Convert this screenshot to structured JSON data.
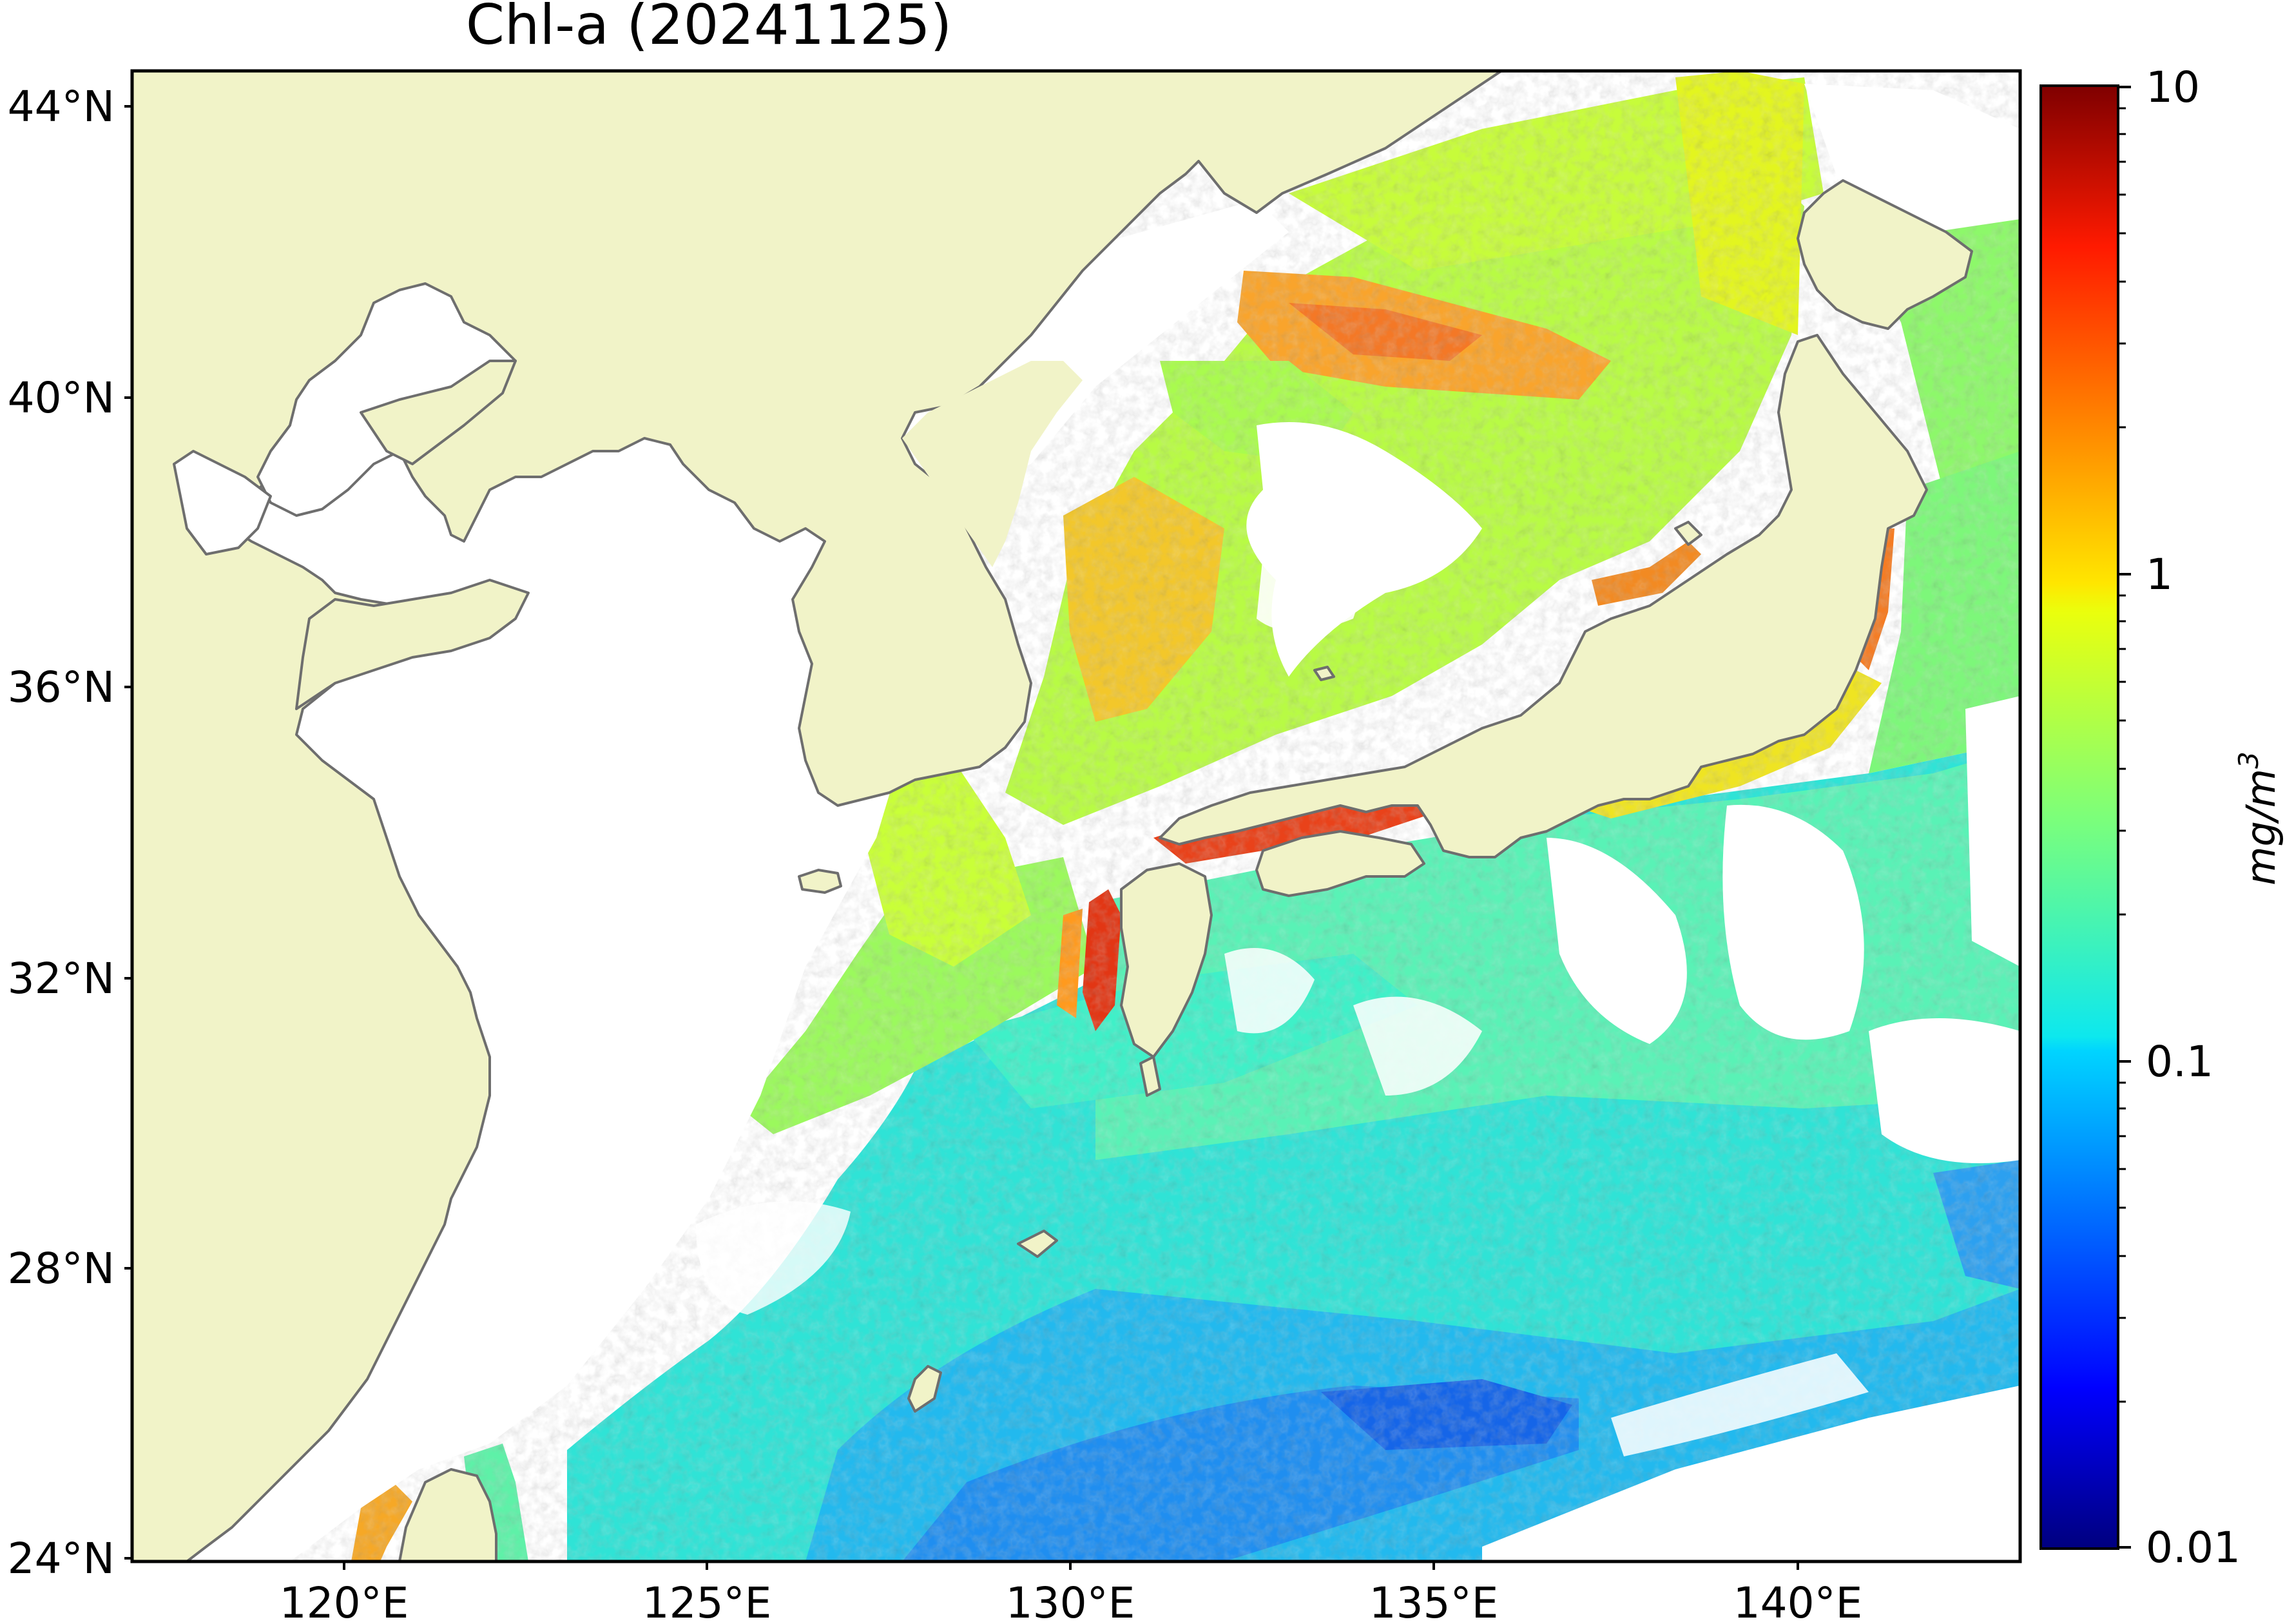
{
  "map": {
    "title": "Chl-a (20241125)",
    "lon_labels": [
      "120°E",
      "125°E",
      "130°E",
      "135°E",
      "140°E"
    ],
    "lat_labels": [
      "44°N",
      "40°N",
      "36°N",
      "32°N",
      "28°N",
      "24°N"
    ],
    "lon_range": [
      117,
      143
    ],
    "lat_range": [
      24,
      44.5
    ]
  },
  "colorbar": {
    "label": "mg/m",
    "label_superscript": "3",
    "scale": "log",
    "ticks": [
      "10",
      "1",
      "0.1",
      "0.01"
    ],
    "range": [
      0.01,
      10
    ],
    "colormap": "jet"
  },
  "colors": {
    "land": "#f1f3c8",
    "no_data": "#ffffff",
    "coastline": "#6e6e6e"
  }
}
